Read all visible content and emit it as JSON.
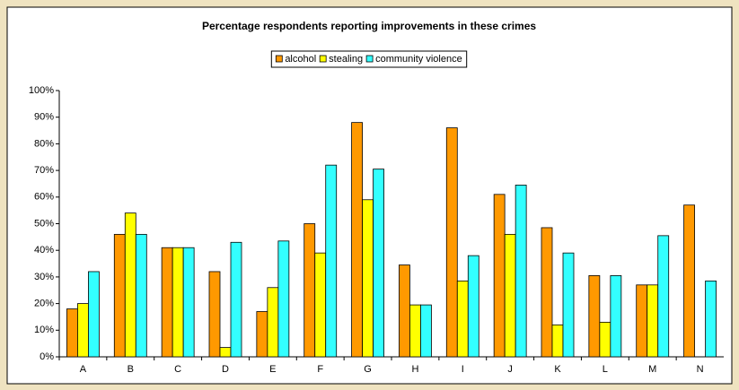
{
  "chart_data": {
    "type": "bar",
    "title": "Percentage respondents reporting improvements in these crimes",
    "categories": [
      "A",
      "B",
      "C",
      "D",
      "E",
      "F",
      "G",
      "H",
      "I",
      "J",
      "K",
      "L",
      "M",
      "N"
    ],
    "series": [
      {
        "name": "alcohol",
        "color": "#ff9900",
        "values": [
          18,
          46,
          41,
          32,
          17,
          50,
          88,
          34.5,
          86,
          61,
          48.5,
          30.5,
          27,
          57
        ]
      },
      {
        "name": "stealing",
        "color": "#ffff00",
        "values": [
          20,
          54,
          41,
          3.5,
          26,
          39,
          59,
          19.5,
          28.5,
          46,
          12,
          13,
          27,
          null
        ]
      },
      {
        "name": "community violence",
        "color": "#33ffff",
        "values": [
          32,
          46,
          41,
          43,
          43.5,
          72,
          70.5,
          19.5,
          38,
          64.5,
          39,
          30.5,
          45.5,
          28.5
        ]
      }
    ],
    "ylim": [
      0,
      100
    ],
    "yticks": [
      {
        "value": 0,
        "label": "0%"
      },
      {
        "value": 10,
        "label": "10%"
      },
      {
        "value": 20,
        "label": "20%"
      },
      {
        "value": 30,
        "label": "30%"
      },
      {
        "value": 40,
        "label": "40%"
      },
      {
        "value": 50,
        "label": "50%"
      },
      {
        "value": 60,
        "label": "60%"
      },
      {
        "value": 70,
        "label": "70%"
      },
      {
        "value": 80,
        "label": "80%"
      },
      {
        "value": 90,
        "label": "90%"
      },
      {
        "value": 100,
        "label": "100%"
      }
    ],
    "legend": "top"
  }
}
